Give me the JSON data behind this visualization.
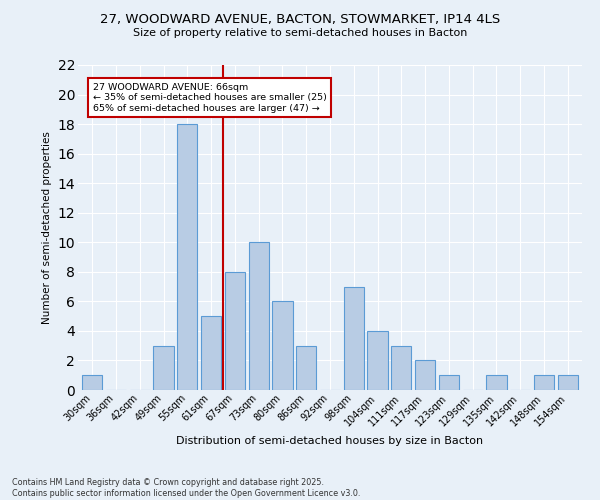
{
  "title_line1": "27, WOODWARD AVENUE, BACTON, STOWMARKET, IP14 4LS",
  "title_line2": "Size of property relative to semi-detached houses in Bacton",
  "xlabel": "Distribution of semi-detached houses by size in Bacton",
  "ylabel": "Number of semi-detached properties",
  "categories": [
    "30sqm",
    "36sqm",
    "42sqm",
    "49sqm",
    "55sqm",
    "61sqm",
    "67sqm",
    "73sqm",
    "80sqm",
    "86sqm",
    "92sqm",
    "98sqm",
    "104sqm",
    "111sqm",
    "117sqm",
    "123sqm",
    "129sqm",
    "135sqm",
    "142sqm",
    "148sqm",
    "154sqm"
  ],
  "values": [
    1,
    0,
    0,
    3,
    18,
    5,
    8,
    10,
    6,
    3,
    0,
    7,
    4,
    3,
    2,
    1,
    0,
    1,
    0,
    1,
    1
  ],
  "bar_color": "#b8cce4",
  "bar_edge_color": "#5b9bd5",
  "vline_x": 5.5,
  "vline_color": "#c00000",
  "annotation_text": "27 WOODWARD AVENUE: 66sqm\n← 35% of semi-detached houses are smaller (25)\n65% of semi-detached houses are larger (47) →",
  "annotation_box_color": "#c00000",
  "ylim": [
    0,
    22
  ],
  "yticks": [
    0,
    2,
    4,
    6,
    8,
    10,
    12,
    14,
    16,
    18,
    20,
    22
  ],
  "background_color": "#e8f0f8",
  "grid_color": "#ffffff",
  "footer_line1": "Contains HM Land Registry data © Crown copyright and database right 2025.",
  "footer_line2": "Contains public sector information licensed under the Open Government Licence v3.0."
}
